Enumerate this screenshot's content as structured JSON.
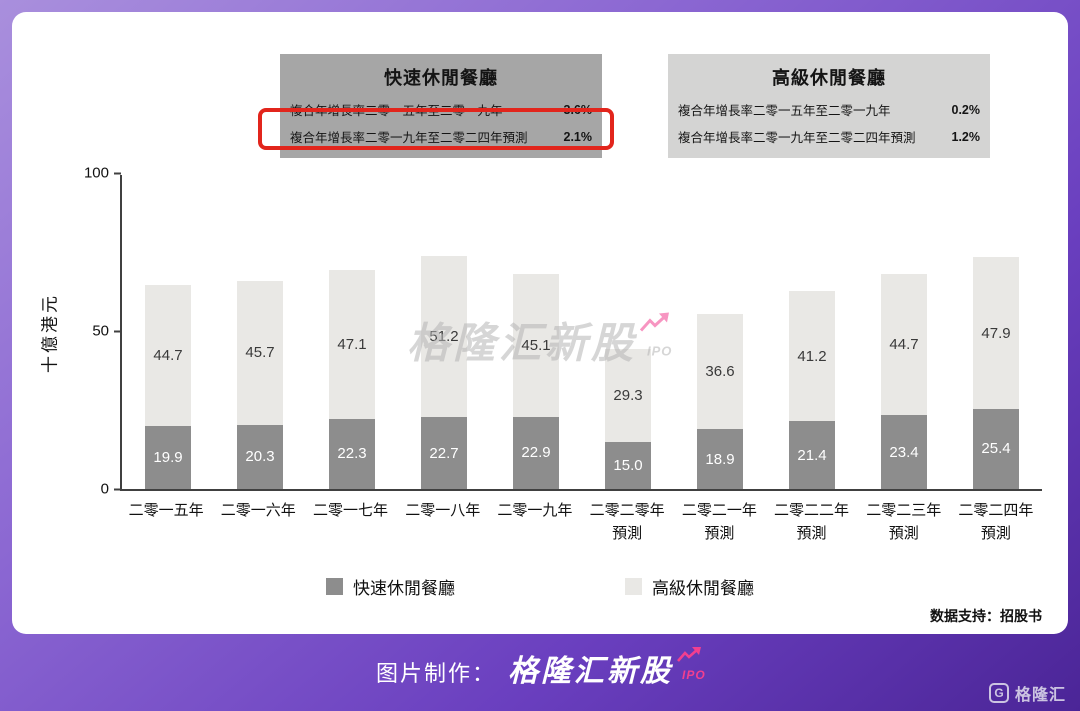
{
  "info_boxes": [
    {
      "title": "快速休閒餐廳",
      "rows": [
        {
          "label": "複合年增長率二零一五年至二零一九年",
          "value": "3.6%",
          "highlighted": false
        },
        {
          "label": "複合年增長率二零一九年至二零二四年預測",
          "value": "2.1%",
          "highlighted": true
        }
      ]
    },
    {
      "title": "高級休閒餐廳",
      "rows": [
        {
          "label": "複合年增長率二零一五年至二零一九年",
          "value": "0.2%",
          "highlighted": false
        },
        {
          "label": "複合年增長率二零一九年至二零二四年預測",
          "value": "1.2%",
          "highlighted": false
        }
      ]
    }
  ],
  "chart_data": {
    "type": "bar",
    "stacked": true,
    "title": "",
    "xlabel": "",
    "ylabel": "十億港元",
    "ylim": [
      0,
      100
    ],
    "yticks": [
      0,
      50,
      100
    ],
    "grid": false,
    "legend_position": "bottom",
    "categories": [
      [
        "二零一五年"
      ],
      [
        "二零一六年"
      ],
      [
        "二零一七年"
      ],
      [
        "二零一八年"
      ],
      [
        "二零一九年"
      ],
      [
        "二零二零年",
        "預測"
      ],
      [
        "二零二一年",
        "預測"
      ],
      [
        "二零二二年",
        "預測"
      ],
      [
        "二零二三年",
        "預測"
      ],
      [
        "二零二四年",
        "預測"
      ]
    ],
    "series": [
      {
        "name": "快速休閒餐廳",
        "color": "#8d8d8d",
        "values": [
          19.9,
          20.3,
          22.3,
          22.7,
          22.9,
          15.0,
          18.9,
          21.4,
          23.4,
          25.4
        ]
      },
      {
        "name": "高級休閒餐廳",
        "color": "#e9e8e5",
        "values": [
          44.7,
          45.7,
          47.1,
          51.2,
          45.1,
          29.3,
          36.6,
          41.2,
          44.7,
          47.9
        ]
      }
    ]
  },
  "source_note": "数据支持：招股书",
  "watermark": {
    "brand": "格隆汇新股",
    "sub": "IPO"
  },
  "footer": {
    "prefix": "图片制作：",
    "brand": "格隆汇新股",
    "sub": "IPO"
  },
  "corner_logo": {
    "glyph": "G",
    "text": "格隆汇"
  },
  "colors": {
    "accent_pink": "#f23f8f",
    "highlight_red": "#e2251c",
    "fast_casual": "#8d8d8d",
    "premium_casual": "#e9e8e5"
  }
}
